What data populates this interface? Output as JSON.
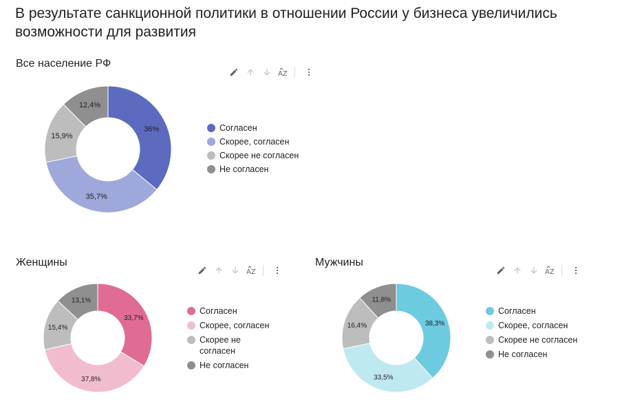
{
  "page": {
    "title": "В результате санкционной политики в отношении России у бизнеса увеличились возможности для развития"
  },
  "icons": {
    "edit": "pencil-icon",
    "up": "arrow-up-icon",
    "down": "arrow-down-icon",
    "sort": "sort-az-icon",
    "more": "more-vertical-icon"
  },
  "chart_data": [
    {
      "type": "pie",
      "donut": true,
      "title": "Все население РФ",
      "legend_position": "right",
      "categories": [
        "Согласен",
        "Скорее, согласен",
        "Скорее не согласен",
        "Не согласен"
      ],
      "values": [
        36,
        35.7,
        15.9,
        12.4
      ],
      "labels": [
        "36%",
        "35,7%",
        "15,9%",
        "12,4%"
      ],
      "colors": [
        "#5c6bc0",
        "#9fa8da",
        "#bdbdbd",
        "#8f8f8f"
      ]
    },
    {
      "type": "pie",
      "donut": true,
      "title": "Женщины",
      "legend_position": "right",
      "categories": [
        "Согласен",
        "Скорее, согласен",
        "Скорее не согласен",
        "Не согласен"
      ],
      "values": [
        33.7,
        37.8,
        15.4,
        13.1
      ],
      "labels": [
        "33,7%",
        "37,8%",
        "15,4%",
        "13,1%"
      ],
      "colors": [
        "#e06c95",
        "#f2bccf",
        "#bdbdbd",
        "#8f8f8f"
      ]
    },
    {
      "type": "pie",
      "donut": true,
      "title": "Мужчины",
      "legend_position": "right",
      "categories": [
        "Согласен",
        "Скорее, согласен",
        "Скорее не согласен",
        "Не согласен"
      ],
      "values": [
        38.3,
        33.5,
        16.4,
        11.8
      ],
      "labels": [
        "38,3%",
        "33,5%",
        "16,4%",
        "11,8%"
      ],
      "colors": [
        "#6dcbdf",
        "#bfe9f1",
        "#bdbdbd",
        "#8f8f8f"
      ]
    }
  ]
}
